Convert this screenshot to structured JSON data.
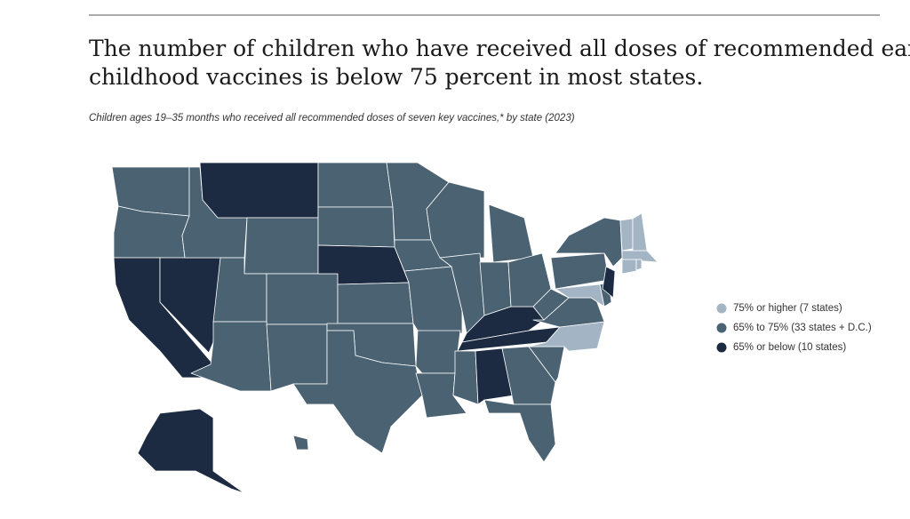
{
  "map": {
    "title_lines": [
      "The number of children who have received all doses of recommended early",
      "childhood vaccines is below 75 percent in most states."
    ],
    "subtitle": "Children ages 19–35 months who received all recommended doses of seven key vaccines,* by state (2023)",
    "legend": [
      {
        "label": "75% or higher (7 states)",
        "color": "#a3b5c4"
      },
      {
        "label": "65% to 75% (33 states + D.C.)",
        "color": "#4a6272"
      },
      {
        "label": "65% or below (10 states)",
        "color": "#1c2b41"
      }
    ],
    "regions": [
      1,
      1,
      2,
      2,
      1,
      2,
      1,
      1,
      1,
      1,
      1,
      1,
      1,
      2,
      1,
      1,
      1,
      1,
      1,
      1,
      1,
      1,
      1,
      1,
      1,
      1,
      2,
      2,
      1,
      2,
      1,
      1,
      1,
      0,
      1,
      1,
      1,
      1,
      0,
      1,
      2,
      0,
      0,
      1,
      0,
      0,
      0,
      2,
      1
    ]
  }
}
